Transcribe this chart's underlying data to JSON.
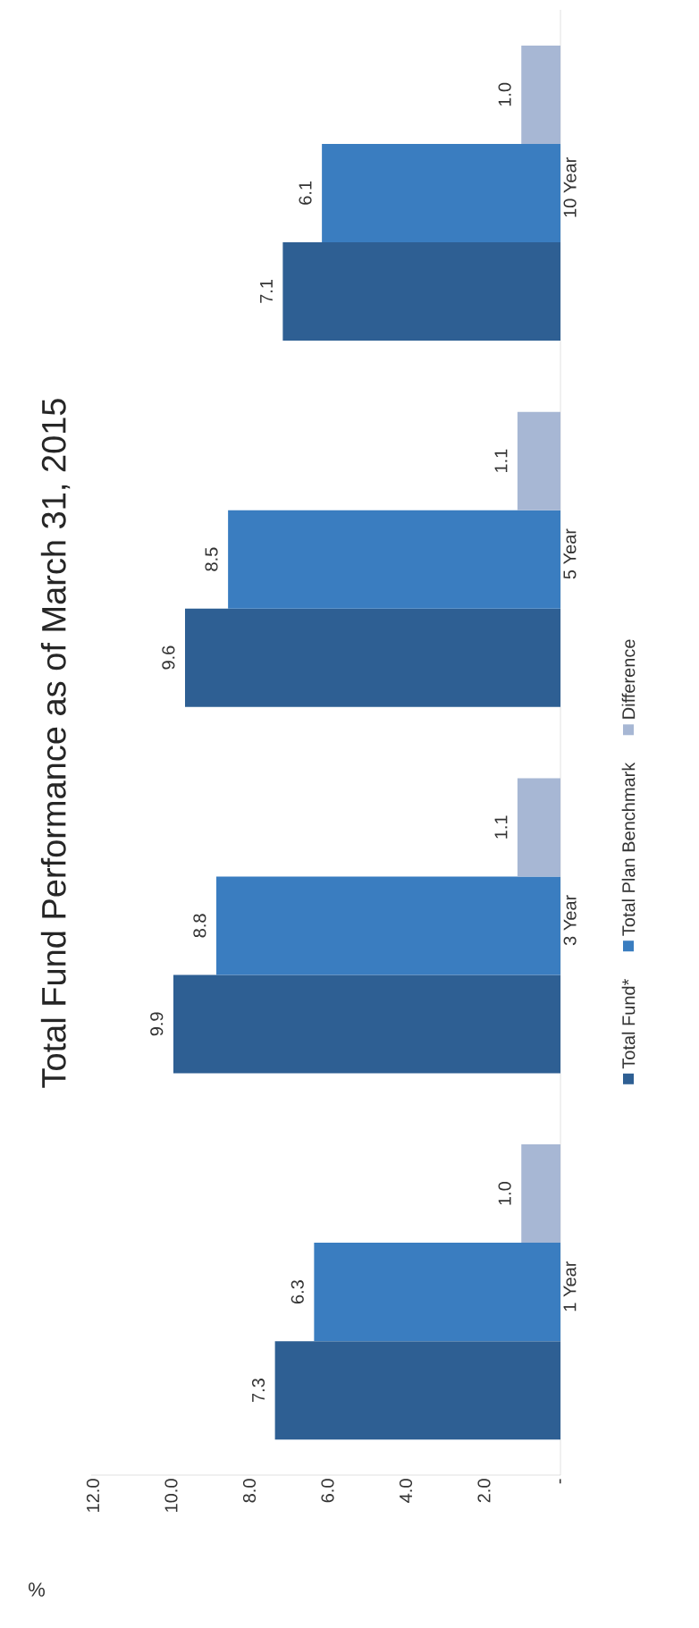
{
  "chart_data": {
    "type": "bar",
    "orientation": "horizontal",
    "title": "Total Fund Performance as of March 31, 2015",
    "xlabel": "%",
    "categories": [
      "10 Year",
      "5 Year",
      "3 Year",
      "1 Year"
    ],
    "series": [
      {
        "name": "Total Fund*",
        "color": "#2e5f93",
        "values": [
          7.1,
          9.6,
          9.9,
          7.3
        ],
        "value_labels": [
          "7.1",
          "9.6",
          "9.9",
          "7.3"
        ]
      },
      {
        "name": "Total Plan Benchmark",
        "color": "#3a7dc0",
        "values": [
          6.1,
          8.5,
          8.8,
          6.3
        ],
        "value_labels": [
          "6.1",
          "8.5",
          "8.8",
          "6.3"
        ]
      },
      {
        "name": "Difference",
        "color": "#a7b7d4",
        "values": [
          1.0,
          1.1,
          1.1,
          1.0
        ],
        "value_labels": [
          "1.0",
          "1.1",
          "1.1",
          "1.0"
        ]
      }
    ],
    "xlim": [
      12,
      0
    ],
    "xticks": [
      {
        "value": 0,
        "label": "-"
      },
      {
        "value": 2,
        "label": "2.0"
      },
      {
        "value": 4,
        "label": "4.0"
      },
      {
        "value": 6,
        "label": "6.0"
      },
      {
        "value": 8,
        "label": "8.0"
      },
      {
        "value": 10,
        "label": "10.0"
      },
      {
        "value": 12,
        "label": "12.0"
      }
    ],
    "legend": "bottom",
    "grid": false
  }
}
